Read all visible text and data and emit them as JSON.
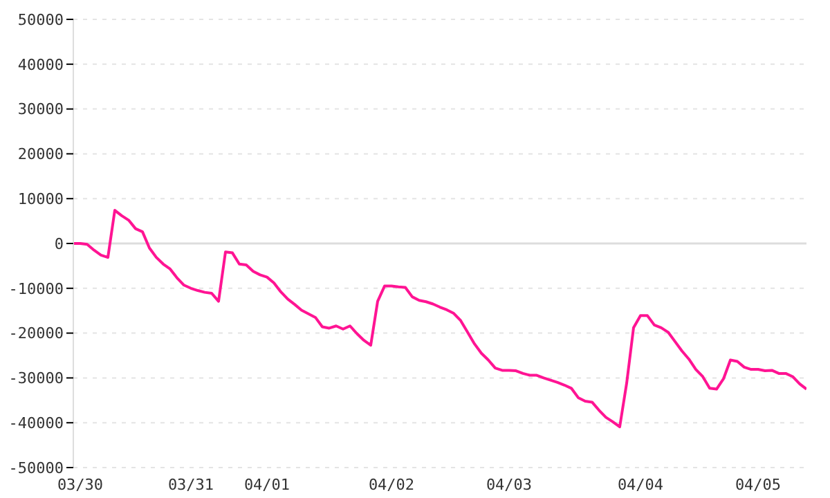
{
  "chart_data": {
    "type": "line",
    "categories": [
      null,
      "03/30",
      null,
      null,
      null,
      null,
      null,
      null,
      null,
      null,
      null,
      null,
      null,
      null,
      null,
      null,
      null,
      "03/31",
      null,
      null,
      null,
      null,
      null,
      null,
      null,
      null,
      null,
      null,
      "04/01",
      null,
      null,
      null,
      null,
      null,
      null,
      null,
      null,
      null,
      null,
      null,
      null,
      null,
      null,
      null,
      null,
      null,
      "04/02",
      null,
      null,
      null,
      null,
      null,
      null,
      null,
      null,
      null,
      null,
      null,
      null,
      null,
      null,
      null,
      null,
      "04/03",
      null,
      null,
      null,
      null,
      null,
      null,
      null,
      null,
      null,
      null,
      null,
      null,
      null,
      null,
      null,
      null,
      null,
      null,
      "04/04",
      null,
      null,
      null,
      null,
      null,
      null,
      null,
      null,
      null,
      null,
      null,
      null,
      null,
      null,
      null,
      null,
      "04/05",
      null,
      null,
      null,
      null,
      null,
      null,
      null
    ],
    "series": [
      {
        "color": "#ff1493",
        "values": [
          0,
          0,
          -200,
          -1500,
          -2600,
          -3100,
          7400,
          6200,
          5200,
          3300,
          2600,
          -1000,
          -3100,
          -4600,
          -5700,
          -7700,
          -9300,
          -10000,
          -10500,
          -10900,
          -11100,
          -12900,
          -1900,
          -2100,
          -4600,
          -4800,
          -6200,
          -7000,
          -7500,
          -8800,
          -10800,
          -12400,
          -13600,
          -14900,
          -15700,
          -16500,
          -18600,
          -18900,
          -18400,
          -19100,
          -18400,
          -20100,
          -21600,
          -22700,
          -12900,
          -9500,
          -9500,
          -9700,
          -9800,
          -11900,
          -12700,
          -13000,
          -13500,
          -14200,
          -14800,
          -15600,
          -17200,
          -19800,
          -22400,
          -24500,
          -26000,
          -27800,
          -28300,
          -28300,
          -28400,
          -29000,
          -29400,
          -29400,
          -30000,
          -30500,
          -31000,
          -31600,
          -32300,
          -34400,
          -35200,
          -35400,
          -37200,
          -38800,
          -39800,
          -40900,
          -31200,
          -18800,
          -16100,
          -16100,
          -18200,
          -18800,
          -19800,
          -21900,
          -24000,
          -25800,
          -28100,
          -29700,
          -32300,
          -32500,
          -30200,
          -26000,
          -26300,
          -27600,
          -28100,
          -28100,
          -28400,
          -28300,
          -29000,
          -29000,
          -29700,
          -31300,
          -32500
        ]
      }
    ],
    "ylim": [
      -50000,
      50000
    ],
    "yticks": [
      -50000,
      -40000,
      -30000,
      -20000,
      -10000,
      0,
      10000,
      20000,
      30000,
      40000,
      50000
    ],
    "grid": "y",
    "legend": false,
    "marker": "none",
    "line_style": "solid",
    "ref_lines": [
      {
        "axis": "y",
        "value": 0,
        "color": "#dddddd"
      }
    ]
  }
}
